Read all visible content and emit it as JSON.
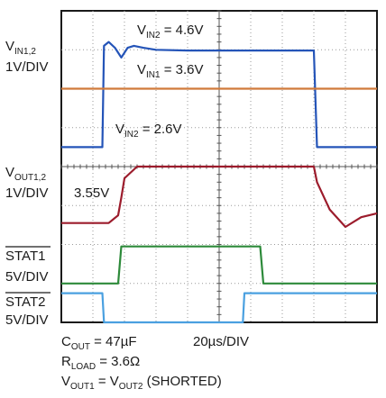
{
  "chart_data": {
    "type": "line",
    "x_unit": "µs",
    "x_divisions": 10,
    "y_divisions": 8,
    "xlim": [
      0,
      200
    ],
    "ylim": [
      0,
      8
    ],
    "timebase": "20µs/DIV",
    "grid": true,
    "channels": [
      {
        "name": "VIN1,2",
        "scale": "1V/DIV",
        "color": "#2454b8"
      },
      {
        "name": "VOUT1,2",
        "scale": "1V/DIV",
        "color": "#9c1c2c"
      },
      {
        "name": "STAT1",
        "scale": "5V/DIV",
        "color": "#2d8a3a",
        "overline": true
      },
      {
        "name": "STAT2",
        "scale": "5V/DIV",
        "color": "#4aa0e0",
        "overline": true
      }
    ],
    "series": [
      {
        "name": "VIN1,2",
        "color": "#2454b8",
        "x": [
          0,
          26,
          27,
          30,
          34,
          38,
          42,
          46,
          52,
          60,
          80,
          120,
          160,
          162,
          168,
          200
        ],
        "y": [
          4.5,
          4.5,
          7.1,
          7.2,
          7.05,
          6.8,
          7.05,
          7.1,
          7.05,
          7.0,
          6.98,
          6.98,
          6.98,
          4.5,
          4.5,
          4.5
        ]
      },
      {
        "name": "VIN1",
        "color": "#d07a3a",
        "x": [
          0,
          200
        ],
        "y": [
          6.0,
          6.0
        ]
      },
      {
        "name": "VOUT1,2",
        "color": "#9c1c2c",
        "x": [
          0,
          30,
          36,
          38,
          40,
          48,
          70,
          120,
          160,
          162,
          170,
          180,
          190,
          200
        ],
        "y": [
          2.55,
          2.55,
          2.75,
          3.2,
          3.7,
          4.0,
          4.0,
          4.0,
          4.0,
          3.6,
          2.9,
          2.45,
          2.7,
          2.8
        ]
      },
      {
        "name": "STAT1",
        "color": "#2d8a3a",
        "x": [
          0,
          36,
          38,
          126,
          128,
          200
        ],
        "y": [
          1.0,
          1.0,
          1.95,
          1.95,
          1.0,
          1.0
        ]
      },
      {
        "name": "STAT2",
        "color": "#4aa0e0",
        "x": [
          0,
          26,
          27,
          115,
          116,
          200
        ],
        "y": [
          0.75,
          0.75,
          0.0,
          0.0,
          0.75,
          0.75
        ]
      }
    ],
    "annotations": [
      {
        "label": "VIN2 = 4.6V",
        "main": "V",
        "sub": "IN2",
        "rest": " = 4.6V"
      },
      {
        "label": "VIN1 = 3.6V",
        "main": "V",
        "sub": "IN1",
        "rest": " = 3.6V"
      },
      {
        "label": "VIN2 = 2.6V",
        "main": "V",
        "sub": "IN2",
        "rest": " = 2.6V"
      },
      {
        "label": "3.55V",
        "main": "3.55V",
        "sub": "",
        "rest": ""
      }
    ],
    "conditions": {
      "cout": {
        "main": "C",
        "sub": "OUT",
        "rest": " = 47µF"
      },
      "rload": {
        "main": "R",
        "sub": "LOAD",
        "rest": " = 3.6Ω"
      },
      "vout": {
        "main": "V",
        "sub": "OUT1",
        "mid": " = V",
        "sub2": "OUT2",
        "rest": " (SHORTED)"
      }
    }
  },
  "labels": {
    "vin_main": "V",
    "vin_sub": "IN1,2",
    "vin_scale": "1V/DIV",
    "vout_main": "V",
    "vout_sub": "OUT1,2",
    "vout_scale": "1V/DIV",
    "stat1_name": "STAT1",
    "stat1_scale": "5V/DIV",
    "stat2_name": "STAT2",
    "stat2_scale": "5V/DIV"
  }
}
